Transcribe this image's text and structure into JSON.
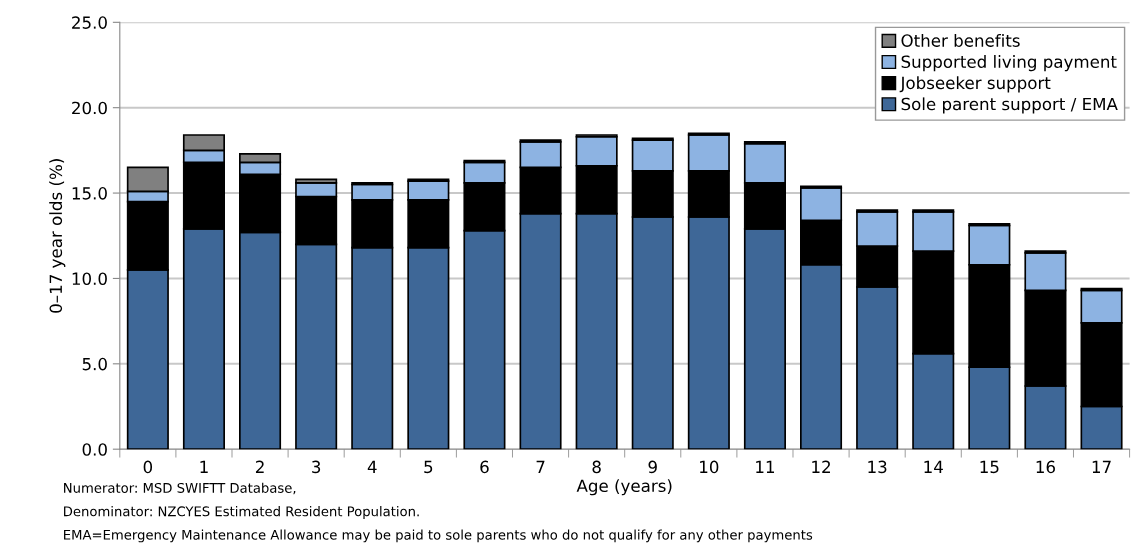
{
  "chart_data": {
    "type": "bar",
    "stacked": true,
    "xlabel": "Age (years)",
    "ylabel": "0–17 year olds (%)",
    "categories": [
      "0",
      "1",
      "2",
      "3",
      "4",
      "5",
      "6",
      "7",
      "8",
      "9",
      "10",
      "11",
      "12",
      "13",
      "14",
      "15",
      "16",
      "17"
    ],
    "series": [
      {
        "name": "Sole parent support / EMA",
        "color": "#3e6797",
        "values": [
          10.5,
          12.9,
          12.7,
          12.0,
          11.8,
          11.8,
          12.8,
          13.8,
          13.8,
          13.6,
          13.6,
          12.9,
          10.8,
          9.5,
          5.6,
          4.8,
          3.7,
          2.5
        ]
      },
      {
        "name": "Jobseeker support",
        "color": "#000000",
        "values": [
          4.0,
          3.9,
          3.4,
          2.8,
          2.8,
          2.8,
          2.8,
          2.7,
          2.8,
          2.7,
          2.7,
          2.7,
          2.6,
          2.4,
          6.0,
          6.0,
          5.6,
          4.9
        ]
      },
      {
        "name": "Supported living payment",
        "color": "#8db3e2",
        "values": [
          0.6,
          0.7,
          0.7,
          0.8,
          0.9,
          1.1,
          1.2,
          1.5,
          1.7,
          1.8,
          2.1,
          2.3,
          1.9,
          2.0,
          2.3,
          2.3,
          2.2,
          1.9
        ]
      },
      {
        "name": "Other benefits",
        "color": "#808080",
        "values": [
          1.4,
          0.9,
          0.5,
          0.2,
          0.1,
          0.1,
          0.1,
          0.1,
          0.1,
          0.1,
          0.1,
          0.1,
          0.1,
          0.1,
          0.1,
          0.1,
          0.1,
          0.1
        ]
      }
    ],
    "ylim": [
      0,
      25
    ],
    "yticks": [
      {
        "value": 0,
        "label": "0.0"
      },
      {
        "value": 5,
        "label": "5.0"
      },
      {
        "value": 10,
        "label": "10.0"
      },
      {
        "value": 15,
        "label": "15.0"
      },
      {
        "value": 20,
        "label": "20.0"
      },
      {
        "value": 25,
        "label": "25.0"
      }
    ],
    "grid": "y",
    "legend": "top right",
    "annotations": [
      "Numerator: MSD SWIFTT Database,",
      "Denominator: NZCYES Estimated Resident Population.",
      "EMA=Emergency Maintenance Allowance may be paid to sole parents who do not qualify for any other payments"
    ]
  }
}
